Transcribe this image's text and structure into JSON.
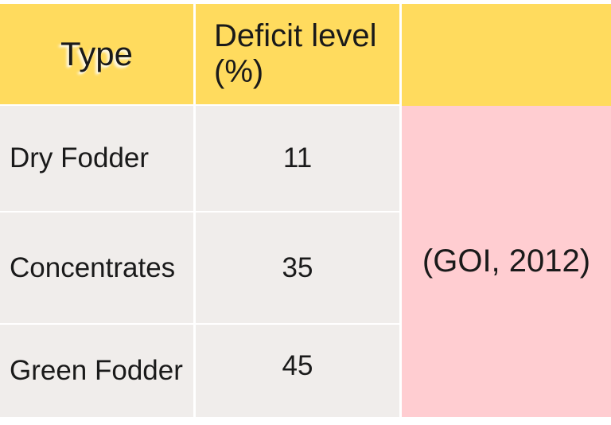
{
  "chart_data": {
    "type": "table",
    "title": "",
    "columns": [
      "Type",
      "Deficit level (%)"
    ],
    "rows": [
      [
        "Dry Fodder",
        11
      ],
      [
        "Concentrates",
        35
      ],
      [
        "Green Fodder",
        45
      ]
    ],
    "annotation": "(GOI, 2012)"
  },
  "colors": {
    "header_bg": "#ffdb5e",
    "row_bg": "#f0edeb",
    "citation_bg": "#ffcdd1",
    "text": "#1a1a1a",
    "background": "#ffffff"
  }
}
